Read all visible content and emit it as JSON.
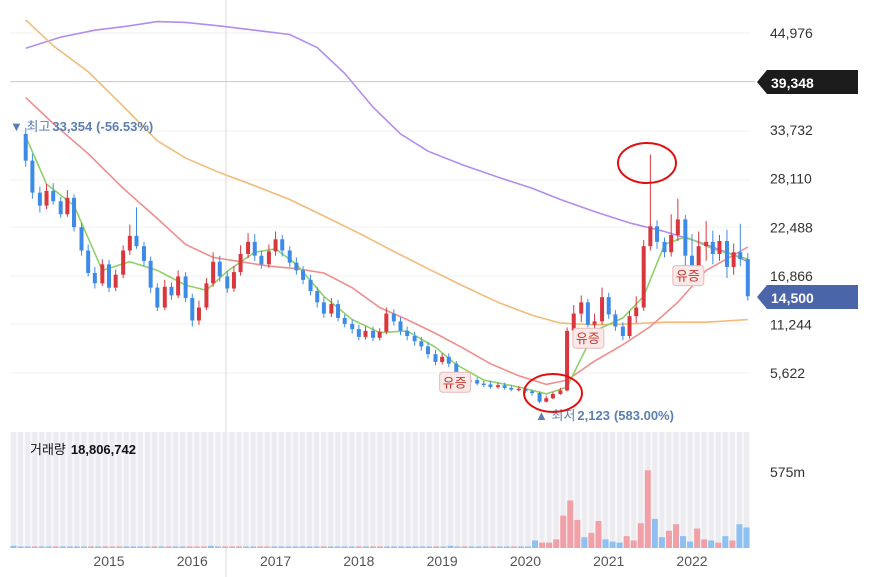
{
  "chart_data": {
    "type": "candlestick",
    "price_axis": {
      "ticks": [
        "44,976",
        "33,732",
        "28,110",
        "22,488",
        "16,866",
        "11,244",
        "5,622"
      ],
      "range": [
        2000,
        47000
      ]
    },
    "x_axis": {
      "ticks": [
        "2015",
        "2016",
        "2017",
        "2018",
        "2019",
        "2020",
        "2021",
        "2022"
      ]
    },
    "reference_price": {
      "value": 39348,
      "label": "39,348"
    },
    "current_price": {
      "value": 14500,
      "label": "14,500"
    },
    "high_marker": {
      "label": "최고",
      "value": "33,354",
      "change": "(-56.53%)"
    },
    "low_marker": {
      "label": "최저",
      "value": "2,123",
      "change": "(583.00%)"
    },
    "event_tags": [
      {
        "label": "유증",
        "year": 2019.15,
        "price": 4550
      },
      {
        "label": "유증",
        "year": 2020.75,
        "price": 9650
      },
      {
        "label": "유증",
        "year": 2021.95,
        "price": 16900
      }
    ],
    "volume": {
      "label": "거래량",
      "value": "18,806,742",
      "axis_tick": "575m"
    },
    "series": {
      "candles": [
        [
          2014.0,
          33300,
          30200,
          34000,
          29500
        ],
        [
          2014.08,
          30200,
          26500,
          31000,
          25800
        ],
        [
          2014.17,
          26500,
          25000,
          27200,
          24200
        ],
        [
          2014.25,
          25000,
          26700,
          27500,
          24600
        ],
        [
          2014.33,
          26700,
          25500,
          27600,
          25100
        ],
        [
          2014.42,
          25500,
          24000,
          26000,
          23600
        ],
        [
          2014.5,
          24000,
          25900,
          26800,
          23700
        ],
        [
          2014.58,
          25900,
          22500,
          26300,
          22000
        ],
        [
          2014.67,
          22500,
          19800,
          23000,
          19200
        ],
        [
          2014.75,
          19800,
          17200,
          20500,
          16800
        ],
        [
          2014.83,
          17200,
          16000,
          17900,
          15400
        ],
        [
          2014.92,
          16000,
          18200,
          18800,
          15700
        ],
        [
          2015.0,
          18200,
          15500,
          18700,
          15000
        ],
        [
          2015.08,
          15500,
          17000,
          17600,
          15100
        ],
        [
          2015.17,
          17000,
          19800,
          20400,
          16600
        ],
        [
          2015.25,
          19800,
          21500,
          22800,
          19300
        ],
        [
          2015.33,
          21500,
          20300,
          24800,
          20000
        ],
        [
          2015.42,
          20300,
          18600,
          20800,
          18000
        ],
        [
          2015.5,
          18600,
          15500,
          19100,
          14900
        ],
        [
          2015.58,
          15500,
          13200,
          16000,
          12800
        ],
        [
          2015.67,
          13200,
          15600,
          16400,
          12900
        ],
        [
          2015.75,
          15600,
          14600,
          16100,
          14100
        ],
        [
          2015.83,
          14600,
          16800,
          17500,
          14300
        ],
        [
          2015.92,
          16800,
          14300,
          17300,
          13800
        ],
        [
          2016.0,
          14300,
          11700,
          14800,
          11000
        ],
        [
          2016.08,
          11700,
          13200,
          14000,
          11200
        ],
        [
          2016.17,
          13200,
          16000,
          16600,
          12900
        ],
        [
          2016.25,
          16000,
          18500,
          19600,
          15600
        ],
        [
          2016.33,
          18500,
          16800,
          19200,
          16200
        ],
        [
          2016.42,
          16800,
          15400,
          17400,
          14900
        ],
        [
          2016.5,
          15400,
          17300,
          18000,
          15000
        ],
        [
          2016.58,
          17300,
          19400,
          20400,
          16900
        ],
        [
          2016.67,
          19400,
          20800,
          21800,
          18900
        ],
        [
          2016.75,
          20800,
          19200,
          21700,
          18600
        ],
        [
          2016.83,
          19200,
          18200,
          19800,
          17700
        ],
        [
          2016.92,
          18200,
          19700,
          20500,
          17800
        ],
        [
          2017.0,
          19700,
          21100,
          22000,
          19200
        ],
        [
          2017.08,
          21100,
          19800,
          21600,
          19100
        ],
        [
          2017.17,
          19800,
          18400,
          20300,
          17900
        ],
        [
          2017.25,
          18400,
          17500,
          19000,
          17000
        ],
        [
          2017.33,
          17500,
          16400,
          18000,
          15900
        ],
        [
          2017.42,
          16400,
          15100,
          17000,
          14600
        ],
        [
          2017.5,
          15100,
          13800,
          15600,
          13200
        ],
        [
          2017.58,
          13800,
          12500,
          14400,
          12000
        ],
        [
          2017.67,
          12500,
          13600,
          14300,
          12100
        ],
        [
          2017.75,
          13600,
          12000,
          14100,
          11600
        ],
        [
          2017.83,
          12000,
          11300,
          12400,
          10900
        ],
        [
          2017.92,
          11300,
          10700,
          11800,
          10200
        ],
        [
          2018.0,
          10700,
          9800,
          11200,
          9400
        ],
        [
          2018.08,
          9800,
          10500,
          11000,
          9500
        ],
        [
          2018.17,
          10500,
          9700,
          11000,
          9300
        ],
        [
          2018.25,
          9700,
          10400,
          10800,
          9400
        ],
        [
          2018.33,
          10400,
          12500,
          13200,
          10100
        ],
        [
          2018.42,
          12500,
          11600,
          13000,
          11100
        ],
        [
          2018.5,
          11600,
          10500,
          12100,
          10000
        ],
        [
          2018.58,
          10500,
          9900,
          11000,
          9400
        ],
        [
          2018.67,
          9900,
          9300,
          10400,
          8800
        ],
        [
          2018.75,
          9300,
          8700,
          9800,
          8200
        ],
        [
          2018.83,
          8700,
          7800,
          9200,
          7300
        ],
        [
          2018.92,
          7800,
          6900,
          8300,
          6500
        ],
        [
          2019.0,
          6900,
          7500,
          7900,
          6600
        ],
        [
          2019.08,
          7500,
          6700,
          7900,
          6300
        ],
        [
          2019.17,
          6700,
          5100,
          7000,
          4800
        ],
        [
          2019.25,
          5100,
          4600,
          5400,
          4300
        ],
        [
          2019.33,
          4600,
          4800,
          5000,
          4400
        ],
        [
          2019.42,
          4800,
          4400,
          5100,
          4200
        ],
        [
          2019.5,
          4400,
          4300,
          4700,
          4000
        ],
        [
          2019.58,
          4300,
          4000,
          4700,
          3800
        ],
        [
          2019.67,
          4000,
          4200,
          4500,
          3800
        ],
        [
          2019.75,
          4200,
          3900,
          4500,
          3700
        ],
        [
          2019.83,
          3900,
          3700,
          4200,
          3500
        ],
        [
          2019.92,
          3700,
          3800,
          4100,
          3500
        ],
        [
          2020.0,
          3800,
          3500,
          4000,
          3300
        ],
        [
          2020.08,
          3500,
          3300,
          3700,
          3000
        ],
        [
          2020.17,
          3300,
          2300,
          3500,
          2123
        ],
        [
          2020.25,
          2300,
          2700,
          3000,
          2200
        ],
        [
          2020.33,
          2700,
          3200,
          3400,
          2600
        ],
        [
          2020.42,
          3200,
          3600,
          3900,
          3100
        ],
        [
          2020.5,
          3600,
          10500,
          10900,
          3500
        ],
        [
          2020.58,
          10500,
          12500,
          13500,
          10000
        ],
        [
          2020.67,
          12500,
          13800,
          14600,
          11500
        ],
        [
          2020.75,
          13800,
          11200,
          14200,
          10900
        ],
        [
          2020.83,
          11200,
          11600,
          12500,
          10700
        ],
        [
          2020.92,
          11600,
          14400,
          15500,
          11200
        ],
        [
          2021.0,
          14400,
          12400,
          14900,
          11900
        ],
        [
          2021.08,
          12400,
          11000,
          12900,
          10500
        ],
        [
          2021.17,
          11000,
          9900,
          11500,
          9400
        ],
        [
          2021.25,
          9900,
          12200,
          12800,
          9600
        ],
        [
          2021.33,
          12200,
          13200,
          14500,
          11400
        ],
        [
          2021.42,
          13200,
          20300,
          21000,
          12800
        ],
        [
          2021.5,
          20300,
          22600,
          30900,
          19800
        ],
        [
          2021.58,
          22600,
          20800,
          23300,
          20000
        ],
        [
          2021.67,
          20800,
          19600,
          21300,
          19000
        ],
        [
          2021.75,
          19600,
          21600,
          24000,
          19100
        ],
        [
          2021.83,
          21600,
          23400,
          25800,
          20900
        ],
        [
          2021.92,
          23400,
          19200,
          23900,
          18000
        ],
        [
          2022.0,
          19200,
          17800,
          21700,
          17100
        ],
        [
          2022.08,
          17800,
          20300,
          22000,
          16700
        ],
        [
          2022.17,
          20300,
          20800,
          23200,
          18600
        ],
        [
          2022.25,
          20800,
          19400,
          22100,
          18200
        ],
        [
          2022.33,
          19400,
          20900,
          21600,
          18600
        ],
        [
          2022.42,
          20900,
          17900,
          22200,
          16600
        ],
        [
          2022.5,
          17900,
          19600,
          20600,
          17000
        ],
        [
          2022.58,
          19600,
          18800,
          22900,
          18000
        ],
        [
          2022.67,
          18800,
          14500,
          19500,
          14000
        ]
      ],
      "ma_short": [
        [
          2014.0,
          33000
        ],
        [
          2014.25,
          27500
        ],
        [
          2014.58,
          25000
        ],
        [
          2014.92,
          17500
        ],
        [
          2015.25,
          18500
        ],
        [
          2015.58,
          17500
        ],
        [
          2015.92,
          15800
        ],
        [
          2016.17,
          15200
        ],
        [
          2016.42,
          17400
        ],
        [
          2016.75,
          19600
        ],
        [
          2017.0,
          20000
        ],
        [
          2017.25,
          18200
        ],
        [
          2017.58,
          14500
        ],
        [
          2017.92,
          11800
        ],
        [
          2018.25,
          10300
        ],
        [
          2018.58,
          10500
        ],
        [
          2018.92,
          8600
        ],
        [
          2019.17,
          6600
        ],
        [
          2019.5,
          4800
        ],
        [
          2019.92,
          4000
        ],
        [
          2020.25,
          3200
        ],
        [
          2020.5,
          4000
        ],
        [
          2020.83,
          10500
        ],
        [
          2021.17,
          12000
        ],
        [
          2021.42,
          14500
        ],
        [
          2021.67,
          20500
        ],
        [
          2021.92,
          21400
        ],
        [
          2022.25,
          20000
        ],
        [
          2022.67,
          18800
        ]
      ],
      "ma_mid": [
        [
          2014.0,
          37500
        ],
        [
          2014.33,
          34500
        ],
        [
          2014.75,
          31000
        ],
        [
          2015.17,
          27000
        ],
        [
          2015.58,
          23500
        ],
        [
          2015.92,
          20500
        ],
        [
          2016.25,
          19000
        ],
        [
          2016.58,
          18500
        ],
        [
          2016.92,
          18000
        ],
        [
          2017.25,
          17700
        ],
        [
          2017.58,
          17200
        ],
        [
          2017.92,
          15500
        ],
        [
          2018.25,
          13200
        ],
        [
          2018.58,
          11800
        ],
        [
          2018.92,
          10200
        ],
        [
          2019.25,
          8500
        ],
        [
          2019.58,
          6700
        ],
        [
          2019.92,
          5300
        ],
        [
          2020.25,
          4300
        ],
        [
          2020.5,
          4800
        ],
        [
          2020.83,
          7000
        ],
        [
          2021.17,
          8900
        ],
        [
          2021.5,
          11000
        ],
        [
          2021.83,
          13800
        ],
        [
          2022.17,
          17500
        ],
        [
          2022.67,
          20200
        ]
      ],
      "ma_long": [
        [
          2014.0,
          46500
        ],
        [
          2014.33,
          43500
        ],
        [
          2014.75,
          40500
        ],
        [
          2015.17,
          36500
        ],
        [
          2015.58,
          32500
        ],
        [
          2015.92,
          30500
        ],
        [
          2016.33,
          28800
        ],
        [
          2016.75,
          27300
        ],
        [
          2017.17,
          25700
        ],
        [
          2017.58,
          23800
        ],
        [
          2018.0,
          21800
        ],
        [
          2018.42,
          19700
        ],
        [
          2018.83,
          17700
        ],
        [
          2019.25,
          15700
        ],
        [
          2019.67,
          13800
        ],
        [
          2020.08,
          12300
        ],
        [
          2020.42,
          11400
        ],
        [
          2020.83,
          11200
        ],
        [
          2021.25,
          11300
        ],
        [
          2021.67,
          11500
        ],
        [
          2022.17,
          11500
        ],
        [
          2022.67,
          11800
        ]
      ],
      "ma_xlong": [
        [
          2014.0,
          43200
        ],
        [
          2014.42,
          44500
        ],
        [
          2014.83,
          45300
        ],
        [
          2015.17,
          45700
        ],
        [
          2015.58,
          46300
        ],
        [
          2015.92,
          46200
        ],
        [
          2016.33,
          45800
        ],
        [
          2016.75,
          45300
        ],
        [
          2017.17,
          44800
        ],
        [
          2017.5,
          43300
        ],
        [
          2017.83,
          40300
        ],
        [
          2018.17,
          36400
        ],
        [
          2018.5,
          33300
        ],
        [
          2018.83,
          31300
        ],
        [
          2019.25,
          29700
        ],
        [
          2019.67,
          28300
        ],
        [
          2020.08,
          27000
        ],
        [
          2020.42,
          25700
        ],
        [
          2020.83,
          24300
        ],
        [
          2021.25,
          23000
        ],
        [
          2021.67,
          22000
        ],
        [
          2022.08,
          20800
        ],
        [
          2022.5,
          19300
        ],
        [
          2022.67,
          18500
        ]
      ],
      "volume_bars": [
        0.02,
        0.01,
        0.01,
        0.01,
        0.01,
        0.01,
        0.01,
        0.01,
        0.01,
        0.01,
        0.01,
        0.01,
        0.01,
        0.01,
        0.01,
        0.01,
        0.01,
        0.01,
        0.01,
        0.01,
        0.01,
        0.01,
        0.01,
        0.01,
        0.01,
        0.01,
        0.01,
        0.01,
        0.02,
        0.01,
        0.01,
        0.01,
        0.01,
        0.01,
        0.01,
        0.01,
        0.01,
        0.01,
        0.01,
        0.01,
        0.01,
        0.01,
        0.01,
        0.01,
        0.01,
        0.01,
        0.01,
        0.01,
        0.01,
        0.01,
        0.01,
        0.01,
        0.01,
        0.01,
        0.01,
        0.01,
        0.01,
        0.01,
        0.01,
        0.01,
        0.01,
        0.01,
        0.02,
        0.01,
        0.01,
        0.01,
        0.01,
        0.01,
        0.01,
        0.01,
        0.01,
        0.01,
        0.01,
        0.01,
        0.07,
        0.05,
        0.05,
        0.08,
        0.3,
        0.44,
        0.26,
        0.1,
        0.14,
        0.25,
        0.08,
        0.06,
        0.05,
        0.11,
        0.07,
        0.23,
        0.72,
        0.27,
        0.1,
        0.16,
        0.22,
        0.11,
        0.06,
        0.18,
        0.08,
        0.07,
        0.05,
        0.11,
        0.07,
        0.22,
        0.19
      ]
    }
  }
}
